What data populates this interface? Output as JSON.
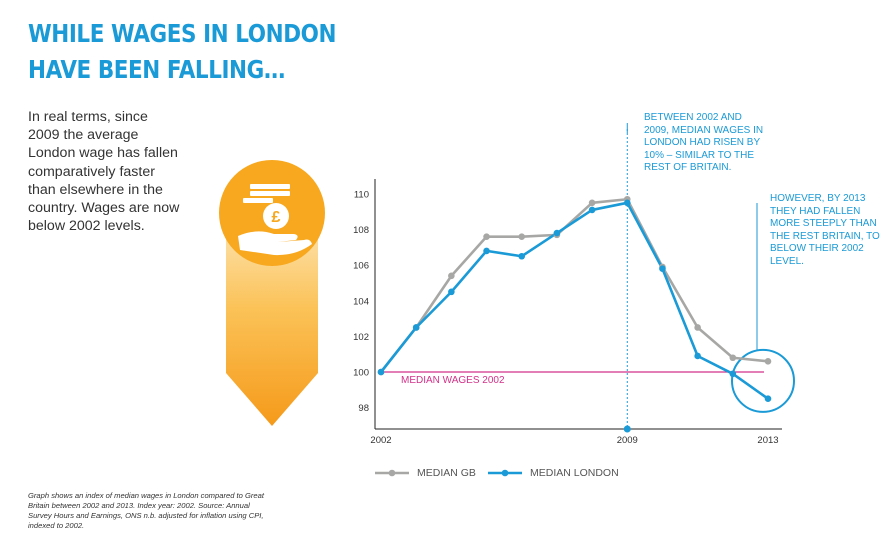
{
  "headline": "WHILE WAGES IN LONDON HAVE BEEN FALLING…",
  "intro_text": "In real terms, since 2009 the average London wage has fallen comparatively faster than elsewhere in the country. Wages are now below 2002 levels.",
  "icon": "hand-with-pound-coins-icon",
  "annotations": {
    "note_2009": "BETWEEN 2002 AND 2009, MEDIAN WAGES IN LONDON HAD RISEN BY 10% – SIMILAR TO THE REST OF BRITAIN.",
    "note_2013": "HOWEVER, BY 2013 THEY HAD FALLEN MORE STEEPLY THAN THE REST BRITAIN, TO BELOW THEIR 2002 LEVEL."
  },
  "footnote": "Graph shows an index of median wages in London compared to Great Britain between 2002 and 2013. Index year: 2002. Source: Annual Survey Hours and Earnings, ONS n.b. adjusted for inflation using CPI, indexed to 2002.",
  "colors": {
    "accent": "#1a9ad6",
    "gb": "#a7a7a5",
    "london": "#1a9ad6",
    "baseline": "#d2328a",
    "orange": "#f7a81f",
    "orange_light": "#fdd98a"
  },
  "chart_data": {
    "type": "line",
    "x": [
      2002,
      2003,
      2004,
      2005,
      2006,
      2007,
      2008,
      2009,
      2010,
      2011,
      2012,
      2013
    ],
    "xtick_labels": [
      "2002",
      "2009",
      "2013"
    ],
    "yticks": [
      98,
      100,
      102,
      104,
      106,
      108,
      110
    ],
    "ylim": [
      96.8,
      110.5
    ],
    "series": [
      {
        "name": "MEDIAN GB",
        "values": [
          100,
          102.5,
          105.4,
          107.6,
          107.6,
          107.7,
          109.5,
          109.7,
          105.9,
          102.5,
          100.8,
          100.6
        ]
      },
      {
        "name": "MEDIAN LONDON",
        "values": [
          100,
          102.5,
          104.5,
          106.8,
          106.5,
          107.8,
          109.1,
          109.5,
          105.8,
          100.9,
          99.9,
          98.5
        ]
      }
    ],
    "reference_line": {
      "label": "MEDIAN WAGES 2002",
      "value": 100
    },
    "highlight_x": 2009,
    "highlight_circle_x": 2013
  }
}
